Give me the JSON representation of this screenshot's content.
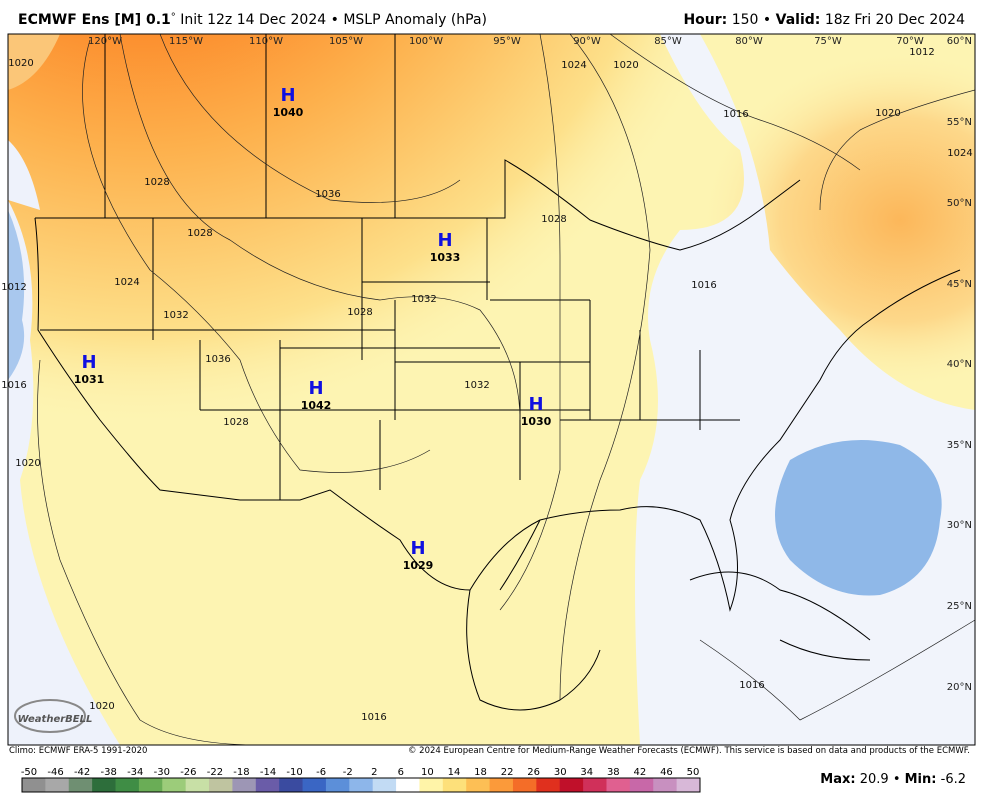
{
  "header": {
    "model": "ECMWF Ens [M] 0.1",
    "degree": "°",
    "init": "Init 12z 14 Dec 2024",
    "bullet": "•",
    "field": "MSLP Anomaly (hPa)",
    "hour_label": "Hour:",
    "hour": "150",
    "valid_label": "Valid:",
    "valid": "18z Fri 20 Dec 2024"
  },
  "map": {
    "longitudes": [
      "120°W",
      "115°W",
      "110°W",
      "105°W",
      "100°W",
      "95°W",
      "90°W",
      "85°W",
      "80°W",
      "75°W",
      "70°W"
    ],
    "latitudes": [
      "60°N",
      "55°N",
      "50°N",
      "45°N",
      "40°N",
      "35°N",
      "30°N",
      "25°N",
      "20°N"
    ],
    "highs": [
      {
        "symbol": "H",
        "pressure": "1040"
      },
      {
        "symbol": "H",
        "pressure": "1033"
      },
      {
        "symbol": "H",
        "pressure": "1031"
      },
      {
        "symbol": "H",
        "pressure": "1042"
      },
      {
        "symbol": "H",
        "pressure": "1030"
      },
      {
        "symbol": "H",
        "pressure": "1029"
      }
    ],
    "contour_labels": [
      "1020",
      "1024",
      "1020",
      "1016",
      "1020",
      "1012",
      "1024",
      "1036",
      "1028",
      "1028",
      "1032",
      "1028",
      "1016",
      "1012",
      "1016",
      "1020",
      "1020",
      "1016",
      "1016",
      "1024",
      "1032",
      "1028",
      "1032",
      "1036",
      "1028"
    ],
    "logo": "WeatherBELL"
  },
  "footer": {
    "climo": "Climo: ECMWF ERA-5 1991-2020",
    "copyright": "© 2024 European Centre for Medium-Range Weather Forecasts (ECMWF). This service is based on data and products of the ECMWF."
  },
  "colorbar": {
    "labels": [
      "-50",
      "-46",
      "-42",
      "-38",
      "-34",
      "-30",
      "-26",
      "-22",
      "-18",
      "-14",
      "-10",
      "-6",
      "-2",
      "2",
      "6",
      "10",
      "14",
      "18",
      "22",
      "26",
      "30",
      "34",
      "38",
      "42",
      "46",
      "50"
    ]
  },
  "stats": {
    "max_label": "Max:",
    "max": "20.9",
    "bullet": "•",
    "min_label": "Min:",
    "min": "-6.2"
  }
}
